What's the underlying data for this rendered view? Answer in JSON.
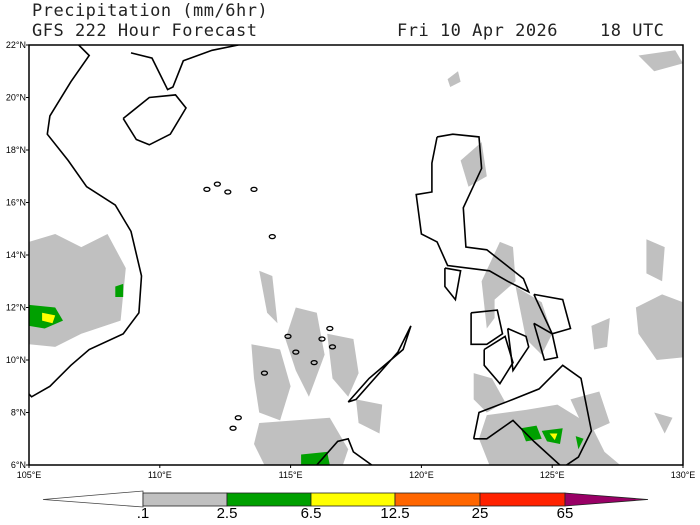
{
  "header": {
    "title": "Precipitation (mm/6hr)",
    "model_line": "GFS 222 Hour Forecast",
    "valid_date": "Fri 10 Apr 2026",
    "valid_time": "18 UTC"
  },
  "map": {
    "lon_range": [
      105,
      130
    ],
    "lat_range": [
      6,
      22
    ],
    "lat_ticks": [
      "6°N",
      "8°N",
      "10°N",
      "12°N",
      "14°N",
      "16°N",
      "18°N",
      "20°N",
      "22°N"
    ],
    "lon_ticks": [
      "105°E",
      "110°E",
      "115°E",
      "120°E",
      "125°E",
      "130°E"
    ]
  },
  "colorbar": {
    "labels": [
      ".1",
      "2.5",
      "6.5",
      "12.5",
      "25",
      "65"
    ],
    "colors": [
      "#ffffff",
      "#c0c0c0",
      "#00a000",
      "#ffff00",
      "#ff6600",
      "#ff2200",
      "#990066"
    ]
  }
}
